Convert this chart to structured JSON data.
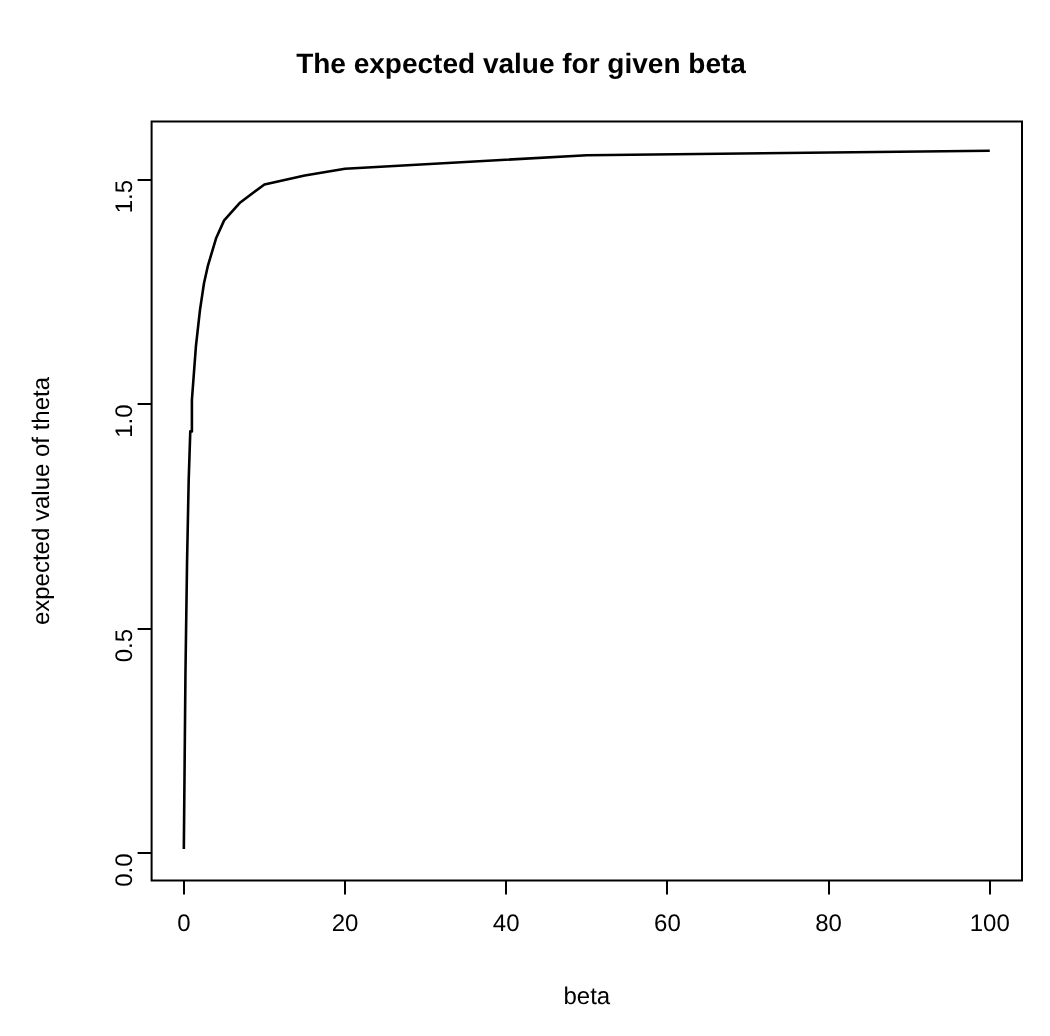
{
  "chart_data": {
    "type": "line",
    "title": "The expected value for given beta",
    "xlabel": "beta",
    "ylabel": "expected value of theta",
    "x": [
      0,
      0.2,
      0.4,
      0.6,
      0.8,
      1,
      1.5,
      2,
      2.5,
      3,
      4,
      5,
      7,
      10,
      15,
      20,
      50,
      100
    ],
    "series": [
      {
        "color": "#000000",
        "values": [
          0.01,
          0.4,
          0.65,
          0.83,
          0.94,
          1.01,
          1.13,
          1.21,
          1.27,
          1.31,
          1.37,
          1.41,
          1.45,
          1.49,
          1.51,
          1.525,
          1.555,
          1.565
        ]
      }
    ],
    "xlim": [
      -4,
      104
    ],
    "xticks": [
      0,
      20,
      40,
      60,
      80,
      100
    ],
    "ylim": [
      -0.06,
      1.63
    ],
    "yticks": [
      {
        "value": 0,
        "label": "0.0"
      },
      0.5,
      {
        "value": 1,
        "label": "1.0"
      },
      1.5
    ],
    "grid": false,
    "legend": false,
    "marker": "none",
    "line_style": "solid"
  }
}
